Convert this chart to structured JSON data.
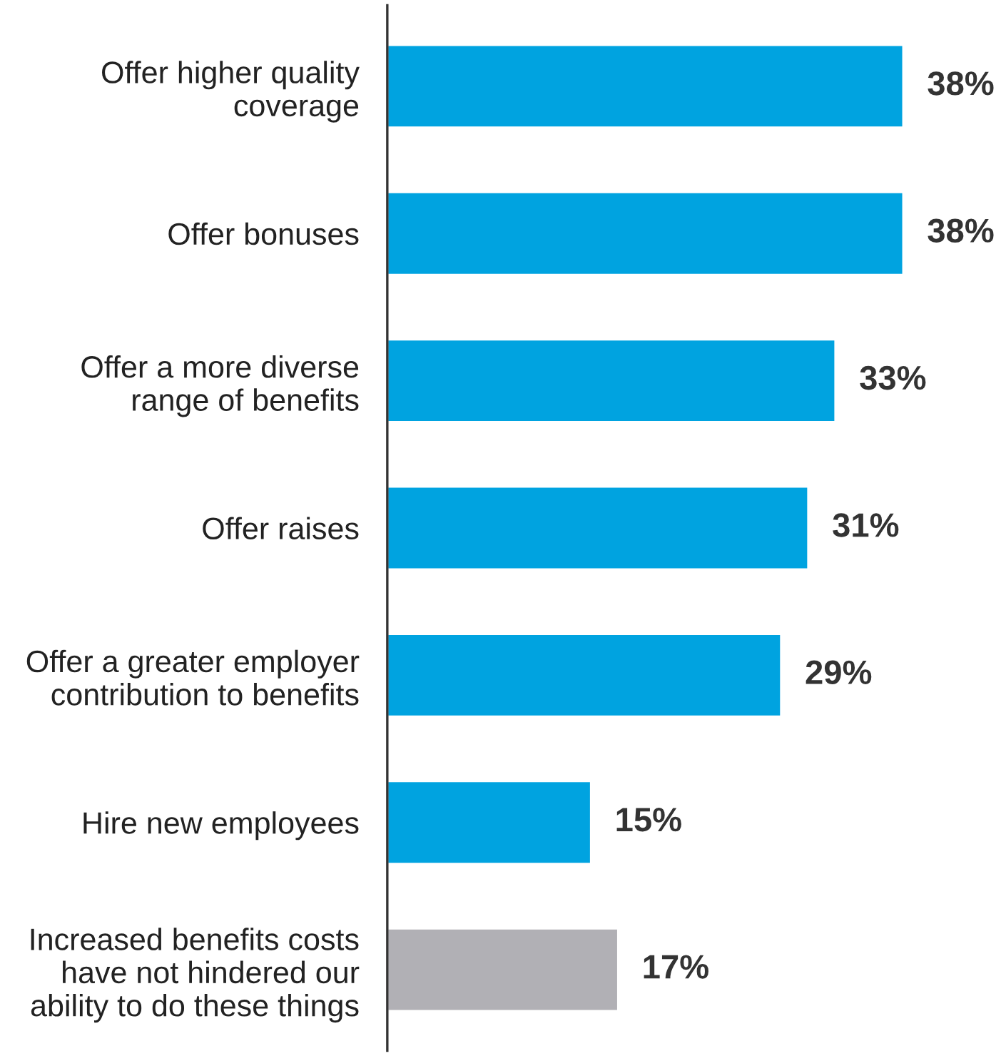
{
  "chart_data": {
    "type": "bar",
    "orientation": "horizontal",
    "categories": [
      "Offer higher quality\ncoverage",
      "Offer bonuses",
      "Offer a more diverse\nrange of benefits",
      "Offer raises",
      "Offer a greater employer\ncontribution to benefits",
      "Hire new employees",
      "Increased benefits costs\nhave not hindered our\nability to do these things"
    ],
    "values": [
      38,
      38,
      33,
      31,
      29,
      15,
      17
    ],
    "colors": [
      "#00a3e0",
      "#00a3e0",
      "#00a3e0",
      "#00a3e0",
      "#00a3e0",
      "#00a3e0",
      "#b1b0b5"
    ],
    "value_labels": [
      "38%",
      "38%",
      "33%",
      "31%",
      "29%",
      "15%",
      "17%"
    ],
    "grid": false,
    "legend": false
  }
}
